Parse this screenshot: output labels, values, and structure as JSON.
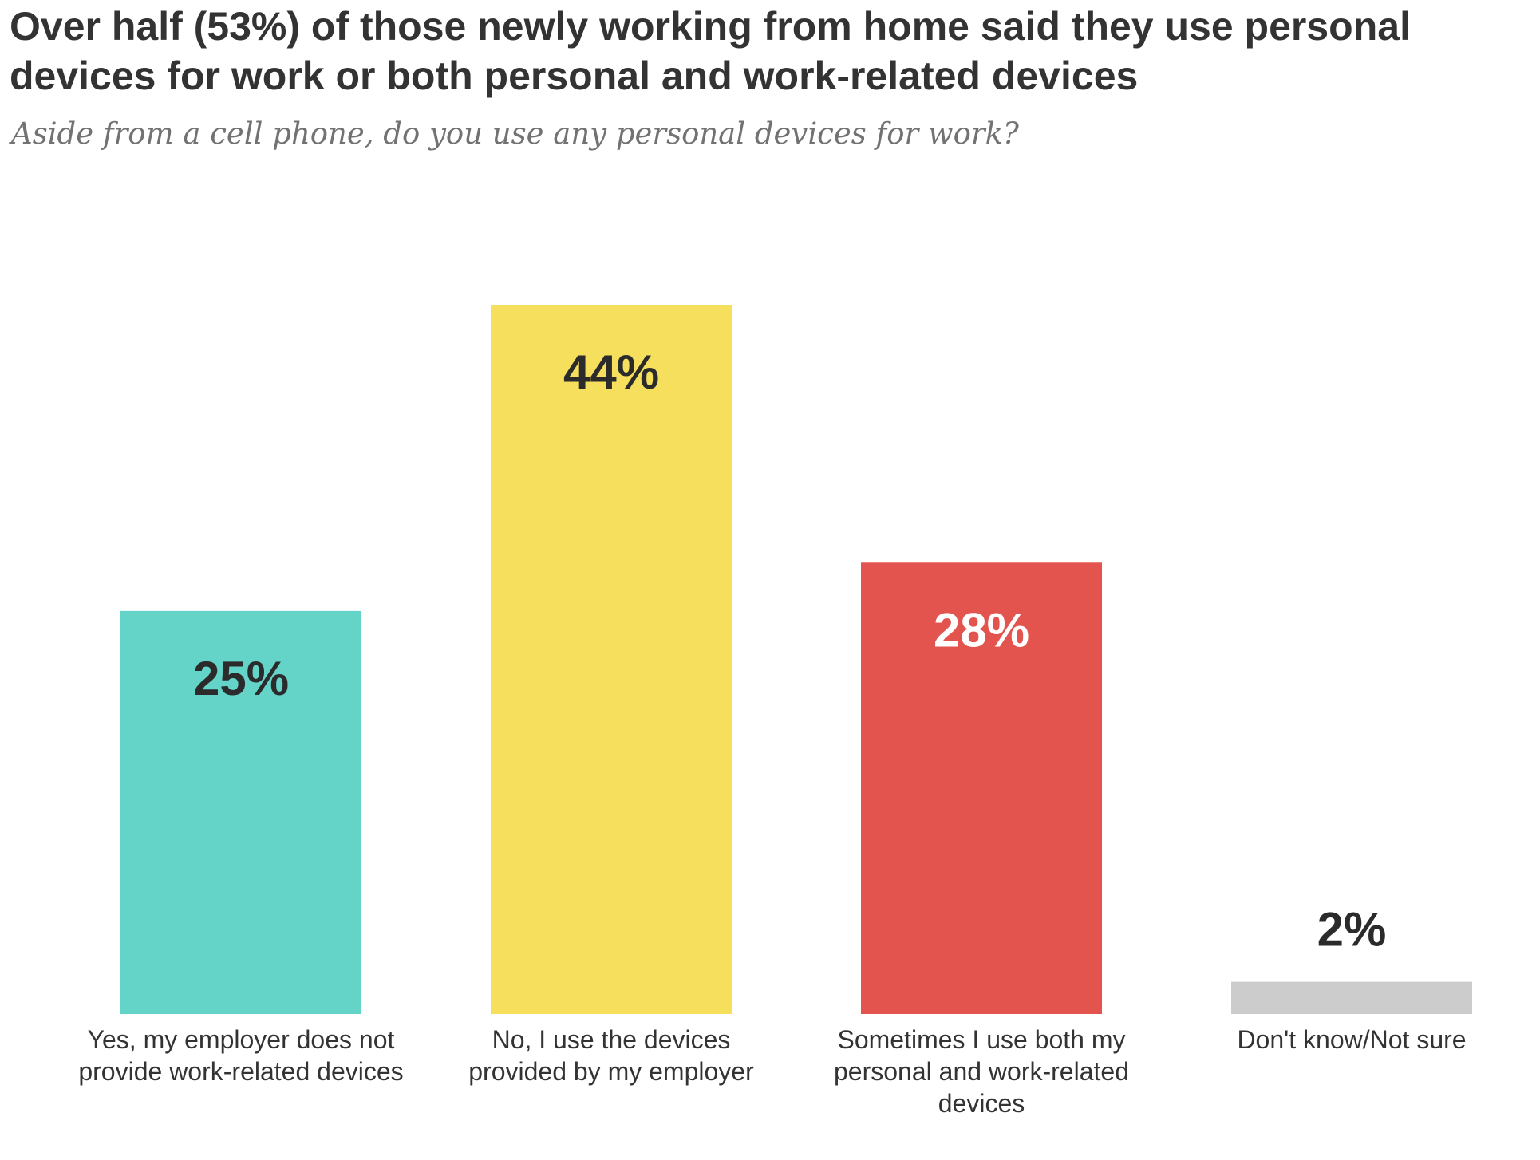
{
  "title": "Over half (53%) of those newly working from home said they use personal devices for work or both personal and work-related devices",
  "subtitle": "Aside from a cell phone, do you use any personal devices for work?",
  "chart_data": {
    "type": "bar",
    "title": "Over half (53%) of those newly working from home said they use personal devices for work or both personal and work-related devices",
    "subtitle": "Aside from a cell phone, do you use any personal devices for work?",
    "categories": [
      "Yes, my employer does not provide work-related devices",
      "No, I use the devices provided by my employer",
      "Sometimes I use both my personal and work-related devices",
      "Don't know/Not sure"
    ],
    "values": [
      25,
      44,
      28,
      2
    ],
    "value_labels": [
      "25%",
      "44%",
      "28%",
      "2%"
    ],
    "colors": [
      "#64d4c9",
      "#f6df5c",
      "#e2544d",
      "#cccccc"
    ],
    "label_colors": [
      "#2b2b2b",
      "#2b2b2b",
      "#ffffff",
      "#2b2b2b"
    ],
    "xlabel": "",
    "ylabel": "",
    "ylim": [
      0,
      44
    ],
    "grid": false,
    "legend": "none"
  }
}
